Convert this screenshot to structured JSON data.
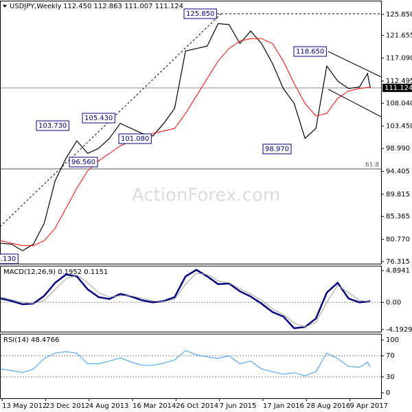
{
  "chart_data": [
    {
      "type": "line",
      "title": "USDJPY,Weekly",
      "subtitle": "112.450 112.863 111.007 111.124",
      "watermark": "ActionForex.com",
      "x": [
        "2012-05-06",
        "2012-07-01",
        "2012-08-26",
        "2012-10-21",
        "2012-12-16",
        "2013-02-10",
        "2013-04-07",
        "2013-06-02",
        "2013-07-28",
        "2013-09-22",
        "2013-11-17",
        "2014-01-12",
        "2014-03-09",
        "2014-05-04",
        "2014-06-29",
        "2014-08-24",
        "2014-10-19",
        "2014-12-14",
        "2015-02-08",
        "2015-04-05",
        "2015-05-31",
        "2015-07-26",
        "2015-09-20",
        "2015-11-15",
        "2016-01-10",
        "2016-03-06",
        "2016-05-01",
        "2016-06-26",
        "2016-08-21",
        "2016-10-16",
        "2016-12-11",
        "2017-02-05",
        "2017-04-02",
        "2017-05-28",
        "2017-07-09",
        "2017-07-23"
      ],
      "xlim": [
        "2012-05-02",
        "2017-09-17"
      ],
      "series": [
        {
          "color": "#000000",
          "values": [
            80.0,
            79.8,
            78.5,
            79.8,
            84,
            92.5,
            97,
            100.5,
            98,
            99,
            101,
            104,
            103,
            102,
            101.5,
            104,
            107,
            118.5,
            119,
            119.5,
            124,
            123.8,
            120,
            122.5,
            120,
            116,
            111,
            108,
            101,
            103,
            115.5,
            112.5,
            111,
            111.3,
            114,
            111.124
          ]
        },
        {
          "color": "#ff0000",
          "values": [
            80.5,
            80,
            79.5,
            79.5,
            80.5,
            83,
            87,
            91,
            94.5,
            96.5,
            98,
            99.5,
            100.5,
            101,
            102,
            102.5,
            103,
            106,
            109.5,
            113,
            116.5,
            119,
            120.5,
            121,
            121,
            120,
            116.5,
            112,
            108,
            105.5,
            106,
            109,
            110.5,
            111,
            111.2,
            111.2
          ]
        }
      ],
      "ylim": [
        75.9,
        128.59
      ],
      "yticks": [
        {
          "value": 125.85,
          "label": "125.850"
        },
        {
          "value": 121.655,
          "label": "121.655"
        },
        {
          "value": 117.09,
          "label": "117.090"
        },
        {
          "value": 112.495,
          "label": "112.495"
        },
        {
          "value": 108.04,
          "label": "108.040"
        },
        {
          "value": 103.45,
          "label": "103.450"
        },
        {
          "value": 98.99,
          "label": "98.990"
        },
        {
          "value": 94.405,
          "label": "94.405"
        },
        {
          "value": 89.815,
          "label": "89.815"
        },
        {
          "value": 85.365,
          "label": "85.365"
        },
        {
          "value": 80.77,
          "label": "80.770"
        },
        {
          "value": 76.315,
          "label": "76.315"
        }
      ],
      "current": {
        "value": 111.124,
        "label": "111.124"
      },
      "level_label": "61.8",
      "annotations": [
        "125.850",
        "118.650",
        "105.430",
        "103.730",
        "101.080",
        "98.970",
        "96.560",
        ".130"
      ]
    },
    {
      "type": "line",
      "title": "MACD(12,26,9) 0.1952 0.1151",
      "series": [
        {
          "color": "#000080",
          "values": [
            0.6,
            0.2,
            -0.3,
            -0.2,
            1.0,
            3.0,
            4.3,
            4.0,
            2.0,
            0.8,
            0.5,
            1.3,
            0.9,
            0.3,
            0.0,
            0.2,
            0.8,
            4.0,
            5.0,
            4.0,
            2.8,
            2.9,
            1.7,
            0.9,
            -0.2,
            -1.5,
            -2.2,
            -4.0,
            -3.8,
            -2.5,
            1.5,
            3.0,
            0.6,
            0.0,
            0.1,
            0.1952
          ]
        },
        {
          "color": "#a0a0a0",
          "values": [
            0.8,
            0.4,
            0.0,
            -0.2,
            0.3,
            2.0,
            3.6,
            4.2,
            3.0,
            1.5,
            0.8,
            1.0,
            1.0,
            0.6,
            0.2,
            0.1,
            0.5,
            2.8,
            4.5,
            4.3,
            3.3,
            3.0,
            2.1,
            1.3,
            0.3,
            -1.0,
            -1.9,
            -3.2,
            -3.8,
            -3.1,
            0.0,
            2.6,
            1.5,
            0.3,
            0.1,
            0.1151
          ]
        }
      ],
      "ylim": [
        -4.63,
        5.64
      ],
      "yticks": [
        4.8941,
        {
          "value": 0,
          "label": "0.00"
        },
        -4.1929
      ],
      "levels": [
        0
      ]
    },
    {
      "type": "line",
      "title": "RSI(14) 48.4766",
      "series": [
        {
          "color": "#3399ff",
          "values": [
            45,
            42,
            38,
            45,
            65,
            75,
            78,
            75,
            55,
            55,
            60,
            66,
            58,
            52,
            52,
            56,
            62,
            80,
            72,
            68,
            65,
            70,
            55,
            60,
            45,
            40,
            35,
            38,
            32,
            40,
            75,
            65,
            50,
            48,
            58,
            48.4766
          ]
        }
      ],
      "ylim": [
        -10.5,
        111.8
      ],
      "yticks": [
        100,
        70,
        30,
        0
      ],
      "levels": [
        70,
        30
      ],
      "xticks": [
        {
          "value": "2012-05-13",
          "label": "13 May 2012"
        },
        {
          "value": "2012-12-23",
          "label": "23 Dec 2012"
        },
        {
          "value": "2013-08-04",
          "label": "4 Aug 2013"
        },
        {
          "value": "2014-03-16",
          "label": "16 Mar 2014"
        },
        {
          "value": "2014-10-26",
          "label": "26 Oct 2014"
        },
        {
          "value": "2015-06-07",
          "label": "7 Jun 2015"
        },
        {
          "value": "2016-01-17",
          "label": "17 Jan 2016"
        },
        {
          "value": "2016-08-28",
          "label": "28 Aug 2016"
        },
        {
          "value": "2017-04-09",
          "label": "9 Apr 2017"
        }
      ]
    }
  ]
}
